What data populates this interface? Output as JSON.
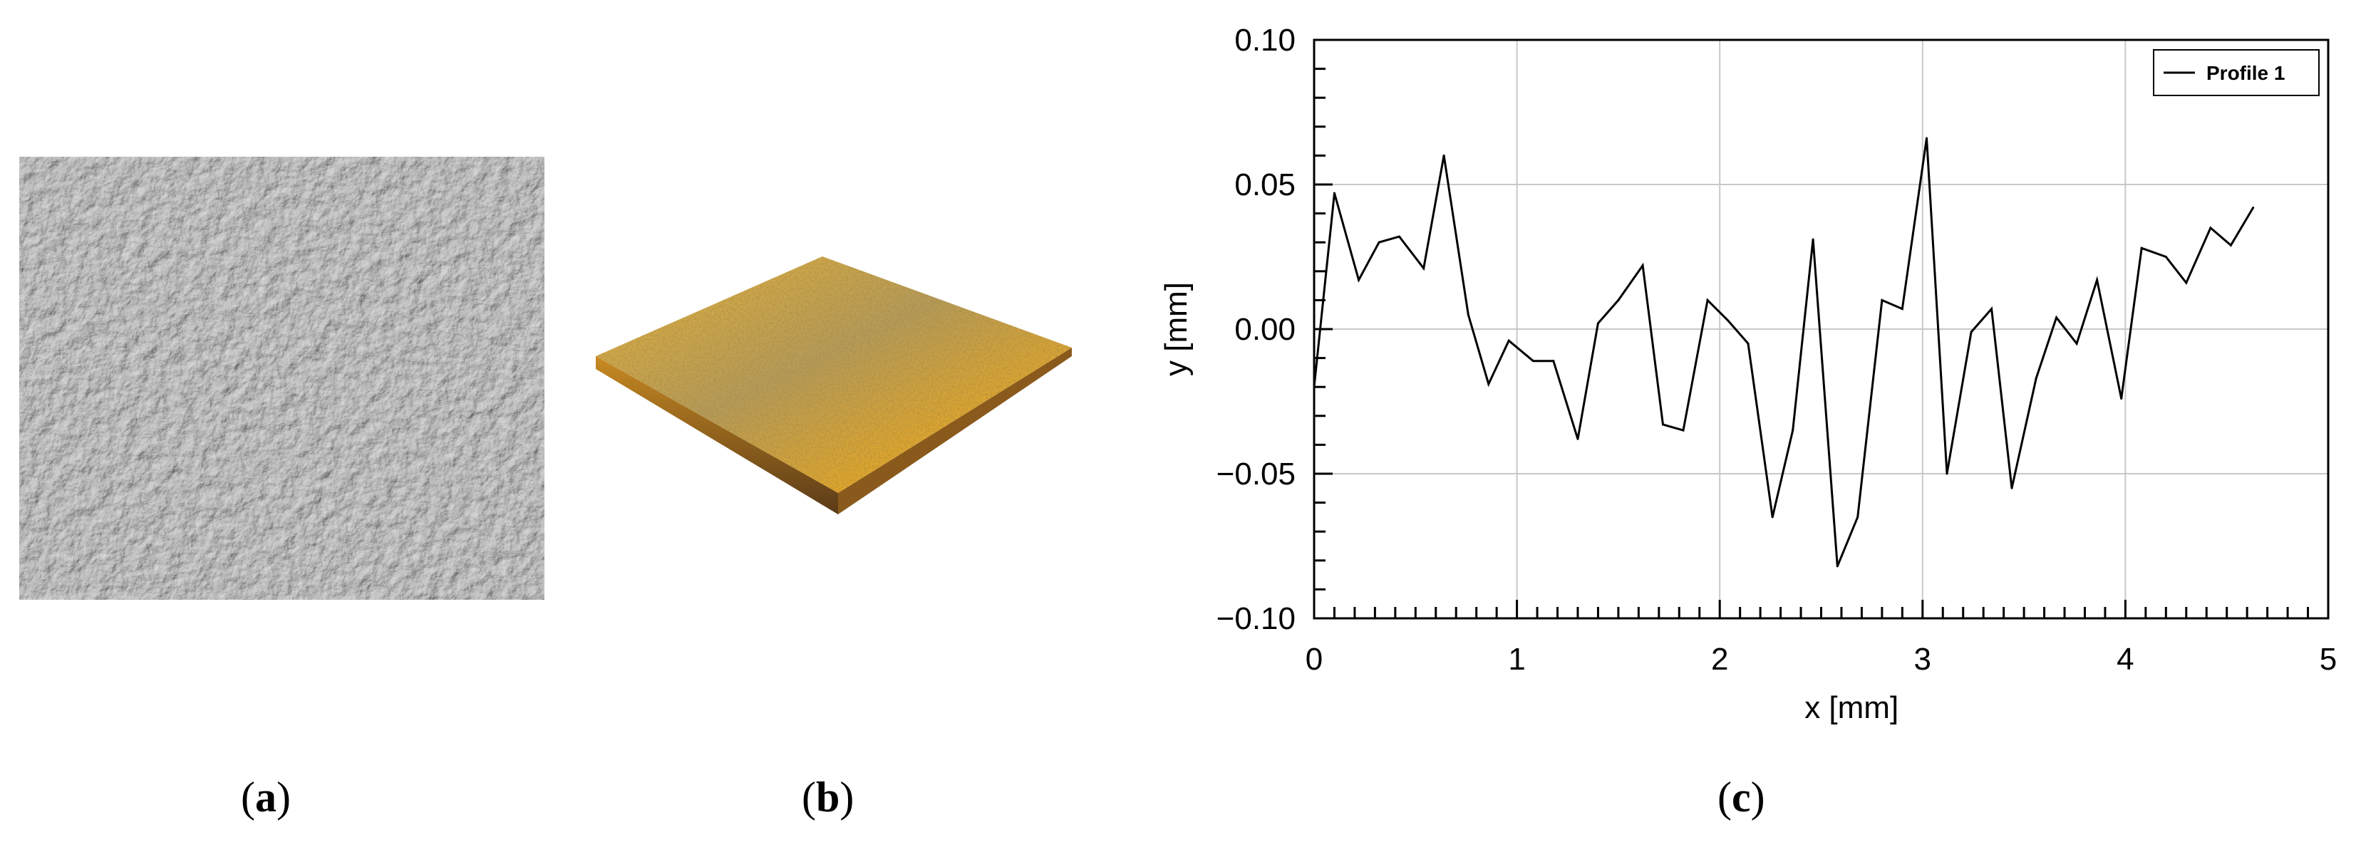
{
  "captions": {
    "a": "a",
    "b": "b",
    "c": "c"
  },
  "panel_a": {
    "description_icon": "grayscale-surface-texture"
  },
  "panel_b": {
    "description_icon": "3d-surface-topography",
    "colors": {
      "top": "#c8a040",
      "mid": "#e0b030",
      "dark": "#5a4020"
    }
  },
  "chart_data": {
    "type": "line",
    "title": "",
    "xlabel": "x [mm]",
    "ylabel": "y [mm]",
    "xlim": [
      0,
      5
    ],
    "ylim": [
      -0.1,
      0.1
    ],
    "xticks": [
      0,
      1,
      2,
      3,
      4,
      5
    ],
    "xtick_labels": [
      "0",
      "1",
      "2",
      "3",
      "4",
      "5"
    ],
    "yticks": [
      0.1,
      0.05,
      0.0,
      -0.05,
      -0.1
    ],
    "ytick_labels": [
      "0.10",
      "0.05",
      "0.00",
      "−0.05",
      "−0.10"
    ],
    "grid": true,
    "legend": {
      "position": "top-right",
      "entries": [
        "Profile 1"
      ]
    },
    "series": [
      {
        "name": "Profile 1",
        "color": "#000000",
        "x": [
          0,
          0.1,
          0.22,
          0.32,
          0.42,
          0.54,
          0.64,
          0.76,
          0.86,
          0.96,
          1.08,
          1.18,
          1.3,
          1.4,
          1.5,
          1.62,
          1.72,
          1.82,
          1.94,
          2.04,
          2.14,
          2.26,
          2.36,
          2.46,
          2.58,
          2.68,
          2.8,
          2.9,
          3.02,
          3.12,
          3.24,
          3.34,
          3.44,
          3.56,
          3.66,
          3.76,
          3.86,
          3.98,
          4.08,
          4.2,
          4.3,
          4.42,
          4.52,
          4.63
        ],
        "values": [
          -0.02,
          0.047,
          0.017,
          0.03,
          0.032,
          0.021,
          0.06,
          0.005,
          -0.019,
          -0.004,
          -0.011,
          -0.011,
          -0.038,
          0.002,
          0.01,
          0.022,
          -0.033,
          -0.035,
          0.01,
          0.003,
          -0.005,
          -0.065,
          -0.035,
          0.031,
          -0.082,
          -0.065,
          0.01,
          0.007,
          0.066,
          -0.05,
          -0.001,
          0.007,
          -0.055,
          -0.017,
          0.004,
          -0.005,
          0.017,
          -0.024,
          0.028,
          0.025,
          0.016,
          0.035,
          0.029,
          0.042
        ]
      }
    ]
  }
}
